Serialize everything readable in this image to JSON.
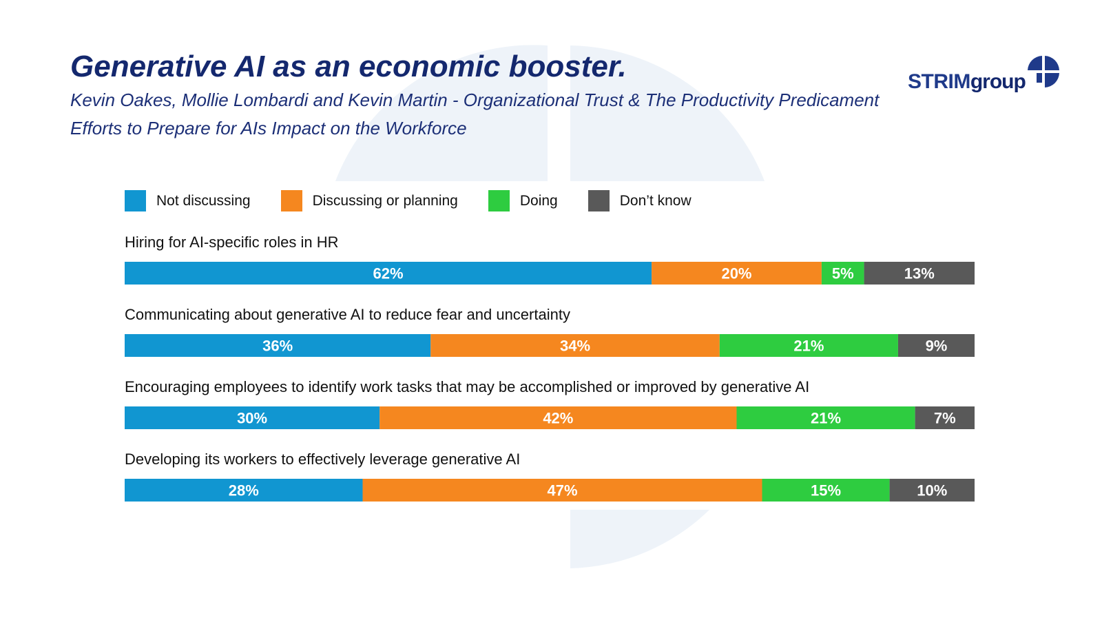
{
  "header": {
    "title": "Generative AI as an economic booster.",
    "subtitle_line1": "Kevin Oakes, Mollie Lombardi and Kevin Martin - Organizational Trust & The Productivity Predicament",
    "subtitle_line2": "Efforts to Prepare for AIs Impact on the Workforce"
  },
  "logo": {
    "part1": "STRIM",
    "part2": "group",
    "mark_icon": "quartered-circle-icon"
  },
  "colors": {
    "title": "#14286e",
    "not_discussing": "#1196d1",
    "discussing_or_planning": "#f5871f",
    "doing": "#2ecc40",
    "dont_know": "#595959",
    "watermark": "#eef3f9"
  },
  "chart_data": {
    "type": "bar",
    "orientation": "horizontal",
    "stacked": true,
    "normalized_to_100": true,
    "legend_position": "top-left",
    "grid": false,
    "categories": [
      "Hiring for AI-specific roles in HR",
      "Communicating about generative AI to reduce fear and uncertainty",
      "Encouraging employees to identify work tasks that may be accomplished or improved by generative AI",
      "Developing its workers to effectively leverage generative AI"
    ],
    "series": [
      {
        "name": "Not discussing",
        "color": "#1196d1",
        "values": [
          62,
          36,
          30,
          28
        ]
      },
      {
        "name": "Discussing or planning",
        "color": "#f5871f",
        "values": [
          20,
          34,
          42,
          47
        ]
      },
      {
        "name": "Doing",
        "color": "#2ecc40",
        "values": [
          5,
          21,
          21,
          15
        ]
      },
      {
        "name": "Don’t know",
        "color": "#595959",
        "values": [
          13,
          9,
          7,
          10
        ]
      }
    ],
    "value_suffix": "%"
  }
}
